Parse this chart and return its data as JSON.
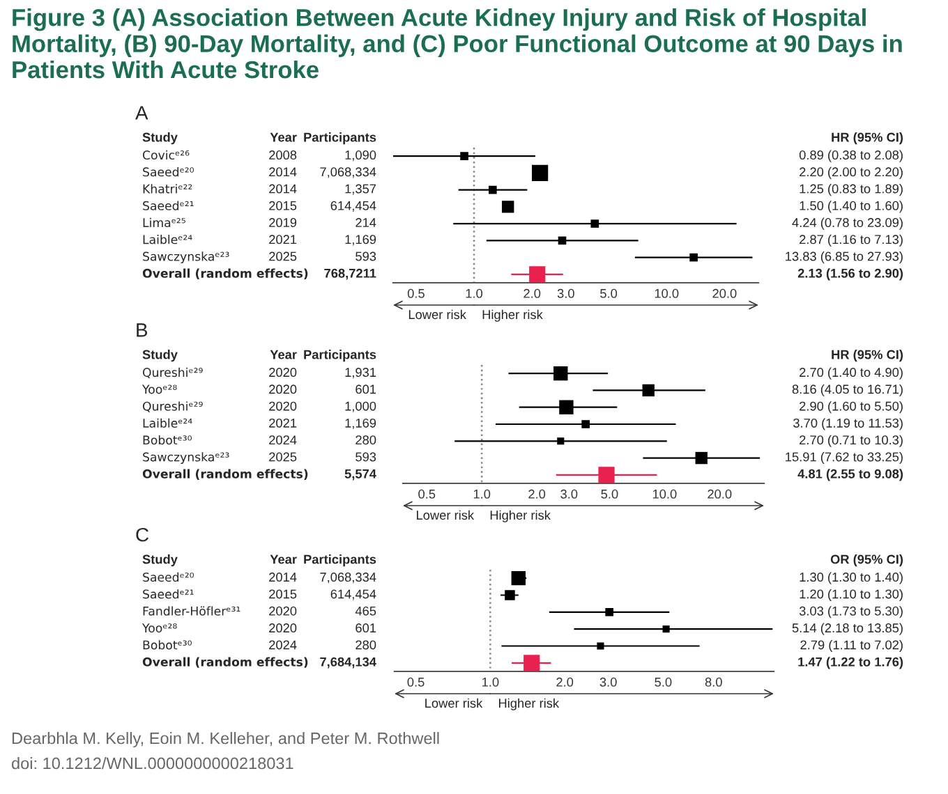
{
  "chart_data": [
    {
      "type": "scatter",
      "title": "Figure 3 (A) Association Between Acute Kidney Injury and Risk of Hospital Mortality, (B) 90-Day Mortality, and (C) Poor Functional Outcome at 90 Days in Patients With Acute Stroke",
      "subtitle": "A",
      "ylabel": "Study",
      "y2label": "HR (95% CI)",
      "categories": [
        "Covicᵉ²⁶",
        "Saeedᵉ²⁰",
        "Khatriᵉ²²",
        "Saeedᵉ²¹",
        "Limaᵉ²⁵",
        "Laibleᵉ²⁴",
        "Sawczynskaᵉ²³",
        "Overall (random effects)"
      ],
      "y_categories": [
        "2008",
        "2014",
        "2014",
        "2015",
        "2019",
        "2021",
        "2025",
        null
      ],
      "y2_categories": [
        "1,090",
        "7,068,334",
        "1,357",
        "614,454",
        "214",
        "1,169",
        "593",
        "768,7211"
      ],
      "values": [
        0.89,
        2.2,
        1.25,
        1.5,
        4.24,
        2.87,
        13.83,
        2.13
      ],
      "errors": [
        [
          0.38,
          2.08
        ],
        [
          2.0,
          2.2
        ],
        [
          0.83,
          1.89
        ],
        [
          1.4,
          1.6
        ],
        [
          0.78,
          23.09
        ],
        [
          1.16,
          7.13
        ],
        [
          6.85,
          27.93
        ],
        [
          1.56,
          2.9
        ]
      ],
      "sizes": [
        0.25,
        1,
        0.25,
        0.56,
        0.25,
        0.25,
        0.25,
        1
      ],
      "colors": [
        "#000000",
        "#000000",
        "#000000",
        "#000000",
        "#000000",
        "#000000",
        "#000000",
        "#e8214f"
      ],
      "value_labels": [
        "0.89 (0.38 to 2.08)",
        "2.20 (2.00 to 2.20)",
        "1.25 (0.83 to 1.89)",
        "1.50 (1.40 to 1.60)",
        "4.24 (0.78 to 23.09)",
        "2.87 (1.16 to 7.13)",
        "13.83 (6.85 to 27.93)",
        "2.13 (1.56 to 2.90)"
      ],
      "log": "x",
      "xlim": [
        0.38,
        30
      ],
      "xticks": [
        {
          "value": 0.5,
          "label": "0.5"
        },
        {
          "value": 1,
          "label": "1.0"
        },
        {
          "value": 2,
          "label": "2.0"
        },
        {
          "value": 3,
          "label": "3.0"
        },
        {
          "value": 5,
          "label": "5.0"
        },
        {
          "value": 10,
          "label": "10.0"
        },
        {
          "value": 20,
          "label": "20.0"
        }
      ],
      "ref_lines": [
        {
          "axis": "x",
          "value": 1,
          "color": "#888888",
          "line_style": "dotted"
        }
      ],
      "marker": "square",
      "grid": false,
      "legend": false,
      "orientation": "horizontal",
      "annotations": [
        "Lower risk",
        "Higher risk",
        "Year",
        "Participants"
      ]
    },
    {
      "type": "scatter",
      "subtitle": "B",
      "ylabel": "Study",
      "y2label": "HR (95% CI)",
      "categories": [
        "Qureshiᵉ²⁹",
        "Yooᵉ²⁸",
        "Qureshiᵉ²⁹",
        "Laibleᵉ²⁴",
        "Bobotᵉ³⁰",
        "Sawczynskaᵉ²³",
        "Overall (random effects)"
      ],
      "y_categories": [
        "2020",
        "2020",
        "2020",
        "2021",
        "2024",
        "2025",
        null
      ],
      "y2_categories": [
        "1,931",
        "601",
        "1,000",
        "1,169",
        "280",
        "593",
        "5,574"
      ],
      "values": [
        2.7,
        8.16,
        2.9,
        3.7,
        2.7,
        15.91,
        4.81
      ],
      "errors": [
        [
          1.4,
          4.9
        ],
        [
          4.05,
          16.71
        ],
        [
          1.6,
          5.5
        ],
        [
          1.19,
          11.53
        ],
        [
          0.71,
          10.3
        ],
        [
          7.62,
          33.25
        ],
        [
          2.55,
          9.08
        ]
      ],
      "sizes": [
        0.77,
        0.56,
        0.77,
        0.25,
        0.19,
        0.56,
        1
      ],
      "colors": [
        "#000000",
        "#000000",
        "#000000",
        "#000000",
        "#000000",
        "#000000",
        "#e8214f"
      ],
      "value_labels": [
        "2.70 (1.40 to 4.90)",
        "8.16 (4.05 to 16.71)",
        "2.90 (1.60 to 5.50)",
        "3.70 (1.19 to 11.53)",
        "2.70 (0.71 to 10.3)",
        "15.91 (7.62 to 33.25)",
        "4.81 (2.55 to 9.08)"
      ],
      "log": "x",
      "xlim": [
        0.37,
        35
      ],
      "xticks": [
        {
          "value": 0.5,
          "label": "0.5"
        },
        {
          "value": 1,
          "label": "1.0"
        },
        {
          "value": 2,
          "label": "2.0"
        },
        {
          "value": 3,
          "label": "3.0"
        },
        {
          "value": 5,
          "label": "5.0"
        },
        {
          "value": 10,
          "label": "10.0"
        },
        {
          "value": 20,
          "label": "20.0"
        }
      ],
      "ref_lines": [
        {
          "axis": "x",
          "value": 1,
          "color": "#888888",
          "line_style": "dotted"
        }
      ],
      "marker": "square",
      "grid": false,
      "legend": false,
      "orientation": "horizontal",
      "annotations": [
        "Lower risk",
        "Higher risk",
        "Year",
        "Participants"
      ]
    },
    {
      "type": "scatter",
      "subtitle": "C",
      "ylabel": "Study",
      "y2label": "OR (95% CI)",
      "categories": [
        "Saeedᵉ²⁰",
        "Saeedᵉ²¹",
        "Fandler-Höflerᵉ³¹",
        "Yooᵉ²⁸",
        "Bobotᵉ³⁰",
        "Overall (random effects)"
      ],
      "y_categories": [
        "2014",
        "2015",
        "2020",
        "2020",
        "2024",
        null
      ],
      "y2_categories": [
        "7,068,334",
        "614,454",
        "465",
        "601",
        "280",
        "7,684,134"
      ],
      "values": [
        1.3,
        1.2,
        3.03,
        5.14,
        2.79,
        1.47
      ],
      "errors": [
        [
          1.3,
          1.4
        ],
        [
          1.1,
          1.3
        ],
        [
          1.73,
          5.3
        ],
        [
          2.18,
          13.85
        ],
        [
          1.11,
          7.02
        ],
        [
          1.22,
          1.76
        ]
      ],
      "sizes": [
        0.77,
        0.39,
        0.25,
        0.19,
        0.19,
        1
      ],
      "colors": [
        "#000000",
        "#000000",
        "#000000",
        "#000000",
        "#000000",
        "#e8214f"
      ],
      "value_labels": [
        "1.30 (1.30 to 1.40)",
        "1.20 (1.10 to 1.30)",
        "3.03 (1.73 to 5.30)",
        "5.14 (2.18 to 13.85)",
        "2.79 (1.11 to 7.02)",
        "1.47 (1.22 to 1.76)"
      ],
      "log": "x",
      "xlim": [
        0.41,
        14
      ],
      "xticks": [
        {
          "value": 0.5,
          "label": "0.5"
        },
        {
          "value": 1,
          "label": "1.0"
        },
        {
          "value": 2,
          "label": "2.0"
        },
        {
          "value": 3,
          "label": "3.0"
        },
        {
          "value": 5,
          "label": "5.0"
        },
        {
          "value": 8,
          "label": "8.0"
        }
      ],
      "ref_lines": [
        {
          "axis": "x",
          "value": 1,
          "color": "#888888",
          "line_style": "dotted"
        }
      ],
      "marker": "square",
      "grid": false,
      "legend": false,
      "orientation": "horizontal",
      "annotations": [
        "Lower risk",
        "Higher risk",
        "Year",
        "Participants",
        "Dearbhla M. Kelly, Eoin M. Kelleher, and Peter M. Rothwell",
        "doi: 10.1212/WNL.0000000000218031"
      ]
    }
  ]
}
